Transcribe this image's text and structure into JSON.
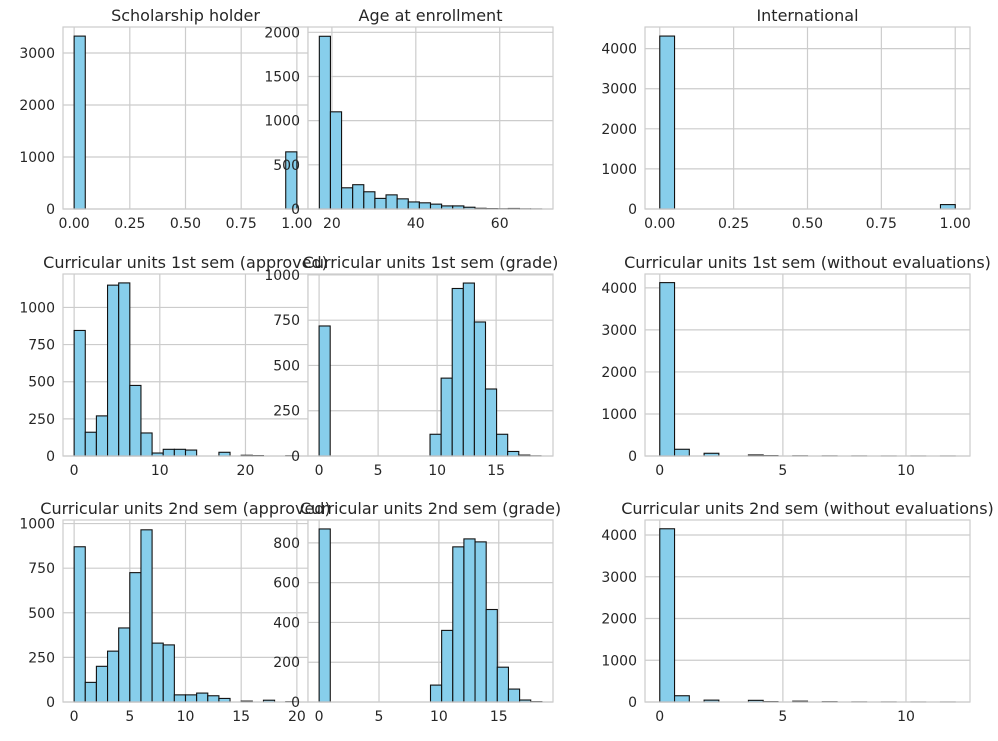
{
  "style": {
    "bar_fill": "#87ceeb",
    "bar_edge": "#111111",
    "grid_color": "#cccccc",
    "frame_color": "#cccccc",
    "background": "#ffffff"
  },
  "chart_data": [
    {
      "type": "bar",
      "title": "Scholarship holder",
      "grid": true,
      "xlim": [
        -0.05,
        1.05
      ],
      "ylim": [
        0,
        3500
      ],
      "xticks": [
        0,
        0.25,
        0.5,
        0.75,
        1
      ],
      "xtick_labels": [
        "0.00",
        "0.25",
        "0.50",
        "0.75",
        "1.00"
      ],
      "yticks": [
        0,
        1000,
        2000,
        3000
      ],
      "ytick_labels": [
        "0",
        "1000",
        "2000",
        "3000"
      ],
      "bins": {
        "start": 0,
        "width": 0.05
      },
      "values": [
        3325,
        0,
        0,
        0,
        0,
        0,
        0,
        0,
        0,
        0,
        0,
        0,
        0,
        0,
        0,
        0,
        0,
        0,
        0,
        1099
      ]
    },
    {
      "type": "bar",
      "title": "Age at enrollment",
      "grid": true,
      "xlim": [
        14.3,
        72.7
      ],
      "ylim": [
        0,
        2060
      ],
      "xticks": [
        20,
        40,
        60
      ],
      "xtick_labels": [
        "20",
        "40",
        "60"
      ],
      "yticks": [
        0,
        500,
        1000,
        1500,
        2000
      ],
      "ytick_labels": [
        "0",
        "500",
        "1000",
        "1500",
        "2000"
      ],
      "bins": {
        "start": 17,
        "width": 2.65
      },
      "values": [
        1955,
        1100,
        240,
        275,
        195,
        120,
        160,
        115,
        80,
        70,
        55,
        35,
        35,
        20,
        8,
        5,
        3,
        6,
        2,
        1
      ]
    },
    {
      "type": "bar",
      "title": "International",
      "grid": true,
      "xlim": [
        -0.05,
        1.05
      ],
      "ylim": [
        0,
        4540
      ],
      "xticks": [
        0,
        0.25,
        0.5,
        0.75,
        1
      ],
      "xtick_labels": [
        "0.00",
        "0.25",
        "0.50",
        "0.75",
        "1.00"
      ],
      "yticks": [
        0,
        1000,
        2000,
        3000,
        4000
      ],
      "ytick_labels": [
        "0",
        "1000",
        "2000",
        "3000",
        "4000"
      ],
      "bins": {
        "start": 0,
        "width": 0.05
      },
      "values": [
        4314,
        0,
        0,
        0,
        0,
        0,
        0,
        0,
        0,
        0,
        0,
        0,
        0,
        0,
        0,
        0,
        0,
        0,
        0,
        110
      ]
    },
    {
      "type": "bar",
      "title": "Curricular units 1st sem (approved)",
      "grid": true,
      "xlim": [
        -1.3,
        27.3
      ],
      "ylim": [
        0,
        1225
      ],
      "xticks": [
        0,
        10,
        20
      ],
      "xtick_labels": [
        "0",
        "10",
        "20"
      ],
      "yticks": [
        0,
        250,
        500,
        750,
        1000
      ],
      "ytick_labels": [
        "0",
        "250",
        "500",
        "750",
        "1000"
      ],
      "bins": {
        "start": 0,
        "width": 1.3
      },
      "values": [
        845,
        160,
        270,
        1150,
        1165,
        475,
        155,
        20,
        45,
        45,
        40,
        0,
        0,
        25,
        0,
        5,
        3,
        0,
        0,
        2
      ]
    },
    {
      "type": "bar",
      "title": "Curricular units 1st sem (grade)",
      "grid": true,
      "xlim": [
        -0.94,
        19.82
      ],
      "ylim": [
        0,
        1005
      ],
      "xticks": [
        0,
        5,
        10,
        15
      ],
      "xtick_labels": [
        "0",
        "5",
        "10",
        "15"
      ],
      "yticks": [
        0,
        250,
        500,
        750,
        1000
      ],
      "ytick_labels": [
        "0",
        "250",
        "500",
        "750",
        "1000"
      ],
      "bins": {
        "start": 0,
        "width": 0.94
      },
      "values": [
        718,
        0,
        0,
        0,
        0,
        0,
        0,
        0,
        0,
        0,
        120,
        430,
        925,
        955,
        740,
        370,
        120,
        25,
        5,
        1
      ]
    },
    {
      "type": "bar",
      "title": "Curricular units 1st sem (without evaluations)",
      "grid": true,
      "xlim": [
        -0.6,
        12.6
      ],
      "ylim": [
        0,
        4330
      ],
      "xticks": [
        0,
        5,
        10
      ],
      "xtick_labels": [
        "0",
        "5",
        "10"
      ],
      "yticks": [
        0,
        1000,
        2000,
        3000,
        4000
      ],
      "ytick_labels": [
        "0",
        "1000",
        "2000",
        "3000",
        "4000"
      ],
      "bins": {
        "start": 0,
        "width": 0.6
      },
      "values": [
        4125,
        160,
        0,
        65,
        0,
        0,
        25,
        10,
        0,
        5,
        0,
        3,
        0,
        2,
        0,
        1,
        0,
        1,
        0,
        1
      ]
    },
    {
      "type": "bar",
      "title": "Curricular units 2nd sem (approved)",
      "grid": true,
      "xlim": [
        -1,
        21
      ],
      "ylim": [
        0,
        1020
      ],
      "xticks": [
        0,
        5,
        10,
        15,
        20
      ],
      "xtick_labels": [
        "0",
        "5",
        "10",
        "15",
        "20"
      ],
      "yticks": [
        0,
        250,
        500,
        750,
        1000
      ],
      "ytick_labels": [
        "0",
        "250",
        "500",
        "750",
        "1000"
      ],
      "bins": {
        "start": 0,
        "width": 1
      },
      "values": [
        870,
        110,
        200,
        285,
        415,
        725,
        965,
        330,
        320,
        40,
        40,
        50,
        35,
        20,
        0,
        5,
        0,
        10,
        0,
        2
      ]
    },
    {
      "type": "bar",
      "title": "Curricular units 2nd sem (grade)",
      "grid": true,
      "xlim": [
        -0.93,
        19.53
      ],
      "ylim": [
        0,
        915
      ],
      "xticks": [
        0,
        5,
        10,
        15
      ],
      "xtick_labels": [
        "0",
        "5",
        "10",
        "15"
      ],
      "yticks": [
        0,
        200,
        400,
        600,
        800
      ],
      "ytick_labels": [
        "0",
        "200",
        "400",
        "600",
        "800"
      ],
      "bins": {
        "start": 0,
        "width": 0.93
      },
      "values": [
        870,
        0,
        0,
        0,
        0,
        0,
        0,
        0,
        0,
        0,
        85,
        360,
        780,
        820,
        805,
        465,
        175,
        65,
        10,
        2
      ]
    },
    {
      "type": "bar",
      "title": "Curricular units 2nd sem (without evaluations)",
      "grid": true,
      "xlim": [
        -0.6,
        12.6
      ],
      "ylim": [
        0,
        4360
      ],
      "xticks": [
        0,
        5,
        10
      ],
      "xtick_labels": [
        "0",
        "5",
        "10"
      ],
      "yticks": [
        0,
        1000,
        2000,
        3000,
        4000
      ],
      "ytick_labels": [
        "0",
        "1000",
        "2000",
        "3000",
        "4000"
      ],
      "bins": {
        "start": 0,
        "width": 0.6
      },
      "values": [
        4150,
        150,
        0,
        45,
        0,
        0,
        40,
        10,
        0,
        20,
        0,
        8,
        0,
        3,
        0,
        2,
        0,
        1,
        0,
        1
      ]
    }
  ]
}
